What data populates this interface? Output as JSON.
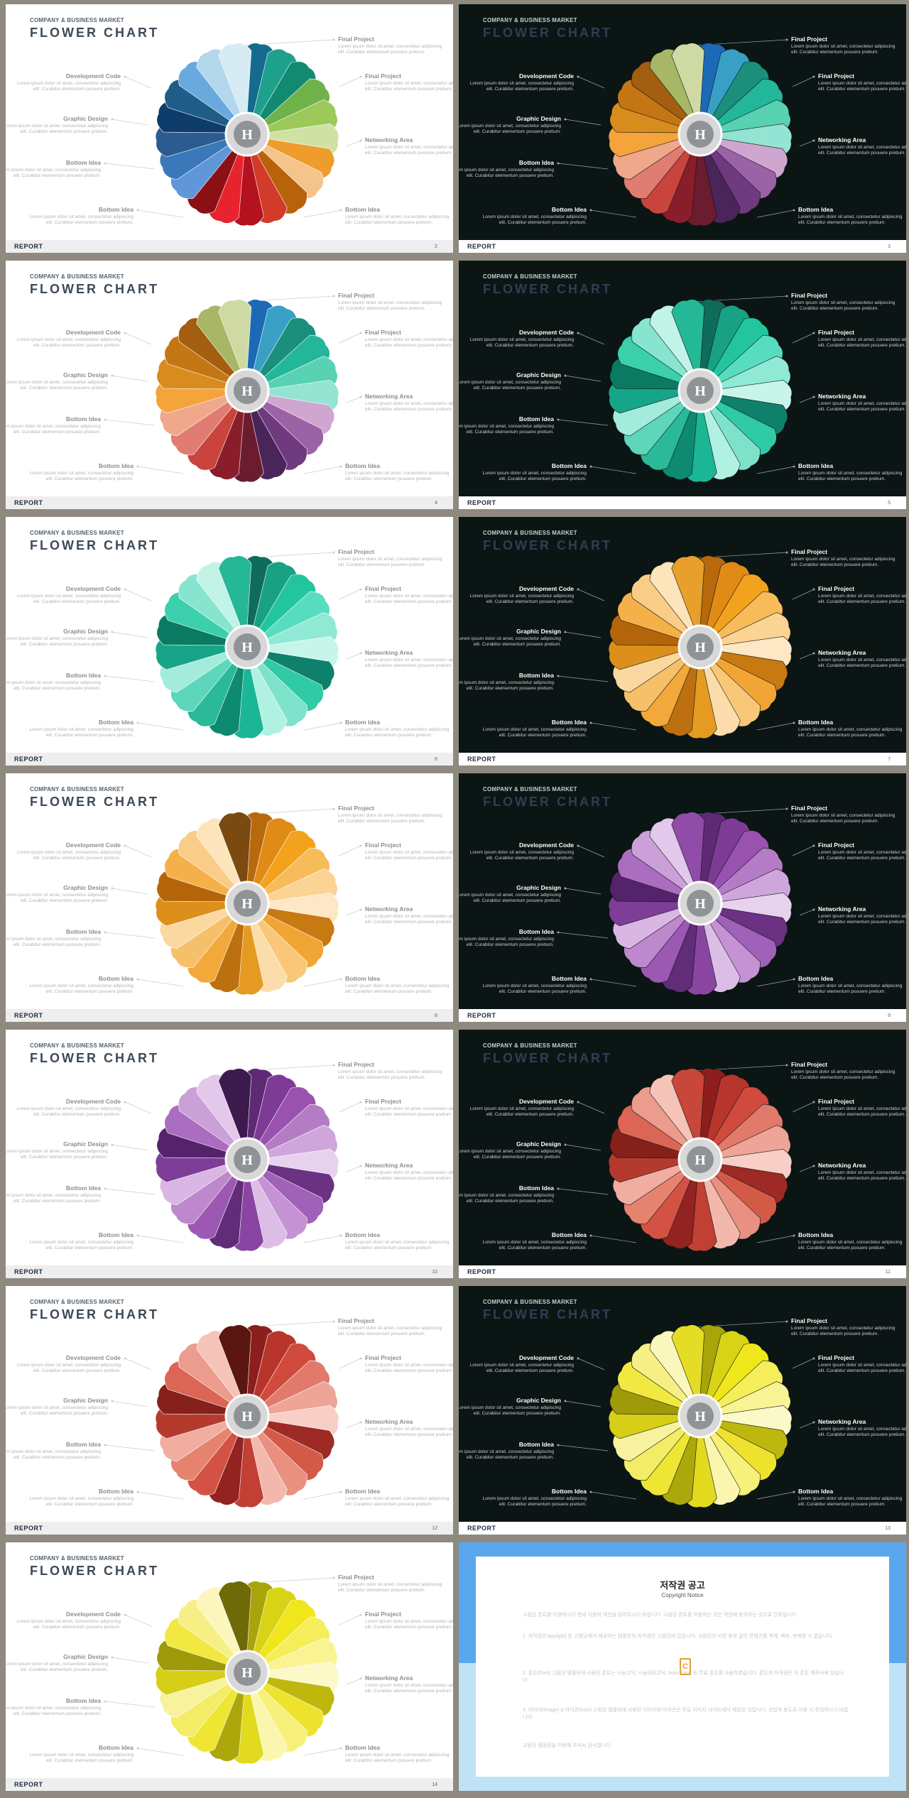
{
  "slides": [
    {
      "theme": "light",
      "page": "2",
      "palette": [
        "#146b8e",
        "#1ea08d",
        "#128a72",
        "#6fb24a",
        "#9cc95a",
        "#cfe2a4",
        "#ee9c2b",
        "#f5c48a",
        "#b8620c",
        "#d23a2a",
        "#b3121e",
        "#e8232f",
        "#8b1016",
        "#5f97d8",
        "#3a78b9",
        "#2c5b92",
        "#0e3c6b",
        "#1f5d88",
        "#69a9de",
        "#b3d7ec",
        "#d6ebf4"
      ]
    },
    {
      "theme": "dark",
      "page": "3",
      "palette": [
        "#1c69b6",
        "#38a0c4",
        "#1b8f7c",
        "#22b79b",
        "#59d1b3",
        "#93e4d2",
        "#cfa6cf",
        "#9b63a6",
        "#6f3a7f",
        "#4a2559",
        "#6b1c2e",
        "#8a1d2a",
        "#c8443d",
        "#e07c72",
        "#f0a88a",
        "#f5a33b",
        "#d98c1e",
        "#c57614",
        "#a35e10",
        "#a8b766",
        "#cfd9a3"
      ]
    },
    {
      "theme": "light",
      "page": "4",
      "palette": [
        "#1c69b6",
        "#38a0c4",
        "#1b8f7c",
        "#22b79b",
        "#59d1b3",
        "#93e4d2",
        "#cfa6cf",
        "#9b63a6",
        "#6f3a7f",
        "#4a2559",
        "#6b1c2e",
        "#8a1d2a",
        "#c8443d",
        "#e07c72",
        "#f0a88a",
        "#f5a33b",
        "#d98c1e",
        "#c57614",
        "#a35e10",
        "#a8b766",
        "#cfd9a3"
      ]
    },
    {
      "theme": "dark",
      "page": "5",
      "palette": [
        "#0f6b5a",
        "#19a184",
        "#23c59f",
        "#58dcc0",
        "#8fe9d5",
        "#c7f5ea",
        "#0f806b",
        "#31caa6",
        "#7ee2ca",
        "#b1f1e2",
        "#1bb695",
        "#0d8a70",
        "#2ab999",
        "#5ed6bb",
        "#a3ecdb",
        "#16a588",
        "#0b7a63",
        "#3bcfac",
        "#87e5cf",
        "#c2f3e7",
        "#24b896"
      ]
    },
    {
      "theme": "light",
      "page": "6",
      "palette": [
        "#0f6b5a",
        "#19a184",
        "#23c59f",
        "#58dcc0",
        "#8fe9d5",
        "#c7f5ea",
        "#0f806b",
        "#31caa6",
        "#7ee2ca",
        "#b1f1e2",
        "#1bb695",
        "#0d8a70",
        "#2ab999",
        "#5ed6bb",
        "#a3ecdb",
        "#16a588",
        "#0b7a63",
        "#3bcfac",
        "#87e5cf",
        "#c2f3e7",
        "#24b896"
      ]
    },
    {
      "theme": "dark",
      "page": "7",
      "palette": [
        "#b8690d",
        "#e08b16",
        "#f3a21e",
        "#f7bb5a",
        "#fbd393",
        "#fde7c4",
        "#c77912",
        "#f0a534",
        "#f8c878",
        "#fcdcaa",
        "#e59a22",
        "#bd700f",
        "#f2a83a",
        "#f6c06b",
        "#fad8a0",
        "#dc8f1a",
        "#b56509",
        "#f5b04a",
        "#f9cd87",
        "#fde4bb",
        "#e99f2c"
      ]
    },
    {
      "theme": "light",
      "page": "8",
      "palette": [
        "#b8690d",
        "#e08b16",
        "#f3a21e",
        "#f7bb5a",
        "#fbd393",
        "#fde7c4",
        "#c77912",
        "#f0a534",
        "#f8c878",
        "#fcdcaa",
        "#e59a22",
        "#bd700f",
        "#f2a83a",
        "#f6c06b",
        "#fad8a0",
        "#dc8f1a",
        "#b56509",
        "#f5b04a",
        "#f9cd87",
        "#fde4bb",
        "#7a4a10"
      ]
    },
    {
      "theme": "dark",
      "page": "9",
      "palette": [
        "#5e2a74",
        "#7d3b95",
        "#9a52b0",
        "#b57cc6",
        "#cfa6db",
        "#e7d2ee",
        "#6b3183",
        "#a061b8",
        "#c592d3",
        "#dcbde6",
        "#8a45a3",
        "#612c78",
        "#9d58b4",
        "#bd88cc",
        "#d9b6e3",
        "#7e3d97",
        "#55236b",
        "#aa6dbf",
        "#cb9fd7",
        "#e3c8eb",
        "#914ba9"
      ]
    },
    {
      "theme": "light",
      "page": "10",
      "palette": [
        "#5e2a74",
        "#7d3b95",
        "#9a52b0",
        "#b57cc6",
        "#cfa6db",
        "#e7d2ee",
        "#6b3183",
        "#a061b8",
        "#c592d3",
        "#dcbde6",
        "#8a45a3",
        "#612c78",
        "#9d58b4",
        "#bd88cc",
        "#d9b6e3",
        "#7e3d97",
        "#55236b",
        "#aa6dbf",
        "#cb9fd7",
        "#e3c8eb",
        "#3c1a4d"
      ]
    },
    {
      "theme": "dark",
      "page": "11",
      "palette": [
        "#8c1f1d",
        "#b8352c",
        "#d04b3d",
        "#e27a6b",
        "#eea496",
        "#f7cfc6",
        "#9d2a24",
        "#d45a48",
        "#e99080",
        "#f3b8ac",
        "#c23f33",
        "#922320",
        "#d35243",
        "#e5836f",
        "#f0ada0",
        "#b53a2e",
        "#85201b",
        "#db6655",
        "#ec9c8c",
        "#f5c3b8",
        "#c8463a"
      ]
    },
    {
      "theme": "light",
      "page": "12",
      "palette": [
        "#8c1f1d",
        "#b8352c",
        "#d04b3d",
        "#e27a6b",
        "#eea496",
        "#f7cfc6",
        "#9d2a24",
        "#d45a48",
        "#e99080",
        "#f3b8ac",
        "#c23f33",
        "#922320",
        "#d35243",
        "#e5836f",
        "#f0ada0",
        "#b53a2e",
        "#85201b",
        "#db6655",
        "#ec9c8c",
        "#f5c3b8",
        "#5c1612"
      ]
    },
    {
      "theme": "dark",
      "page": "13",
      "palette": [
        "#a8a40a",
        "#d9d316",
        "#f0e61c",
        "#f5ee5a",
        "#f9f394",
        "#fcf9c8",
        "#bdb70e",
        "#ede32e",
        "#f7f07a",
        "#fbf6ae",
        "#e2da1e",
        "#aca70b",
        "#eee633",
        "#f3ec66",
        "#f8f29e",
        "#d6ce17",
        "#9e9a09",
        "#f1e842",
        "#f6ef85",
        "#fbf7bc",
        "#e5dc25"
      ]
    },
    {
      "theme": "light",
      "page": "14",
      "palette": [
        "#a8a40a",
        "#d9d316",
        "#f0e61c",
        "#f5ee5a",
        "#f9f394",
        "#fcf9c8",
        "#bdb70e",
        "#ede32e",
        "#f7f07a",
        "#fbf6ae",
        "#e2da1e",
        "#aca70b",
        "#eee633",
        "#f3ec66",
        "#f8f29e",
        "#d6ce17",
        "#9e9a09",
        "#f1e842",
        "#f6ef85",
        "#fbf7bc",
        "#6e6a08"
      ]
    }
  ],
  "common": {
    "subtitle": "COMPANY & BUSINESS MARKET",
    "title": "FLOWER CHART",
    "footer": "REPORT",
    "center_letter": "H",
    "labels": {
      "final_project_1": {
        "title": "Final Project",
        "body": "Lorem ipsum dolor sit amet, consectetur adipiscing elit. Curabitur elementum posuere pretium."
      },
      "final_project_2": {
        "title": "Final Project",
        "body": "Lorem ipsum dolor sit amet, consectetur adipiscing elit. Curabitur elementum posuere pretium."
      },
      "networking_area": {
        "title": "Networking Area",
        "body": "Lorem ipsum dolor sit amet, consectetur adipiscing elit. Curabitur elementum posuere pretium."
      },
      "bottom_idea_right": {
        "title": "Bottom Idea",
        "body": "Lorem ipsum dolor sit amet, consectetur adipiscing elit. Curabitur elementum posuere pretium."
      },
      "development_code": {
        "title": "Development Code",
        "body": "Lorem ipsum dolor sit amet, consectetur adipiscing elit. Curabitur elementum posuere pretium."
      },
      "graphic_design": {
        "title": "Graphic Design",
        "body": "Lorem ipsum dolor sit amet, consectetur adipiscing elit. Curabitur elementum posuere pretium."
      },
      "bottom_idea_left": {
        "title": "Bottom Idea",
        "body": "Lorem ipsum dolor sit amet, consectetur adipiscing elit. Curabitur elementum posuere pretium."
      },
      "bottom_idea_left2": {
        "title": "Bottom Idea",
        "body": "Lorem ipsum dolor sit amet, consectetur adipiscing elit. Curabitur elementum posuere pretium."
      }
    }
  },
  "notice": {
    "title": "저작권 공고",
    "subtitle": "Copyright Notice",
    "logo_letter": "C",
    "paragraphs": [
      "고림당 폰트를 이용하시기 전에 다음의 약관을 읽어주시기 바랍니다. 고림당 폰트를 이용하는 것은 약관에 동의하는 것으로 간주됩니다.",
      "1. 저작권(Copyright) 본 고림당에서 제공하는 템플릿의 저작권은 고림당에 있습니다. 고림당의 사전 동의 없이 콘텐츠를 복제, 배포, 판매할 수 없습니다.",
      "2. 폰트(Font) 고림당 템플릿에 사용된 폰트는 나눔고딕, 나눔바른고딕, Noto Sans 등 무료 폰트를 사용하였습니다. 폰트의 저작권은 각 폰트 제작사에 있습니다.",
      "3. 이미지(Image) & 아이콘(Icon) 고림당 템플릿에 사용된 이미지와 아이콘은 무료 이미지 사이트에서 제공된 것입니다. 상업적 용도로 사용 시 주의하시기 바랍니다.",
      "고림당 템플릿을 이용해 주셔서 감사합니다."
    ]
  }
}
